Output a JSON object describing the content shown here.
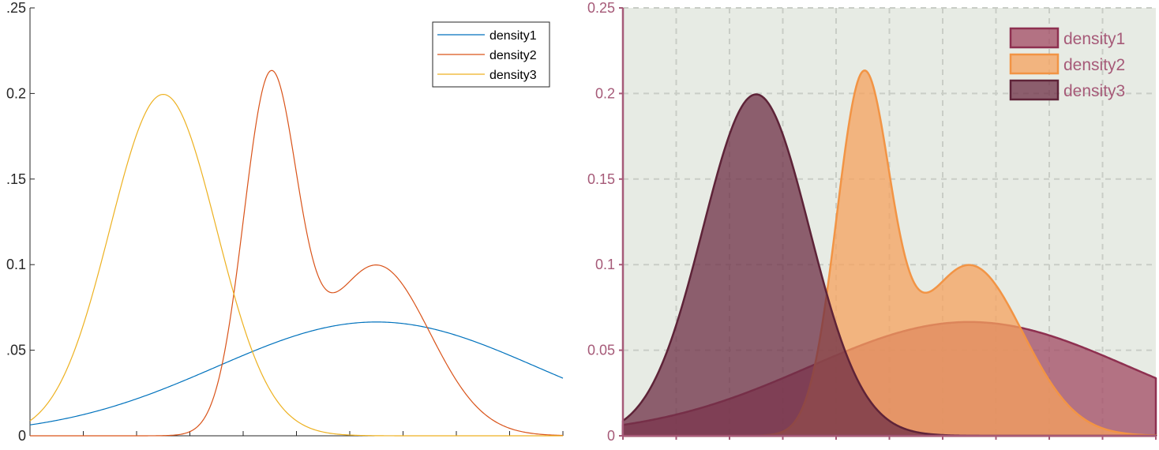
{
  "chart_data": [
    {
      "type": "line",
      "title": "",
      "xlabel": "",
      "ylabel": "",
      "xlim": [
        -2,
        18
      ],
      "ylim": [
        0,
        0.25
      ],
      "yticks": [
        0,
        0.05,
        0.1,
        0.15,
        0.2,
        0.25
      ],
      "ytick_labels": [
        "0",
        ".05",
        "0.1",
        ".15",
        "0.2",
        ".25"
      ],
      "xticks": [
        -2,
        0,
        2,
        4,
        6,
        8,
        10,
        12,
        14,
        16,
        18
      ],
      "grid": false,
      "legend_position": "top-right",
      "legend": [
        "density1",
        "density2",
        "density3"
      ],
      "series": [
        {
          "name": "density1",
          "color": "#0072BD",
          "components": [
            {
              "weight": 1.0,
              "mu": 11,
              "sigma": 6
            }
          ]
        },
        {
          "name": "density2",
          "color": "#D95319",
          "components": [
            {
              "weight": 0.5,
              "mu": 7,
              "sigma": 1
            },
            {
              "weight": 0.5,
              "mu": 11,
              "sigma": 2
            }
          ]
        },
        {
          "name": "density3",
          "color": "#EDB120",
          "components": [
            {
              "weight": 1.0,
              "mu": 3,
              "sigma": 2
            }
          ]
        }
      ]
    },
    {
      "type": "area",
      "title": "",
      "xlabel": "",
      "ylabel": "",
      "xlim": [
        -2,
        18
      ],
      "ylim": [
        0,
        0.25
      ],
      "yticks": [
        0,
        0.05,
        0.1,
        0.15,
        0.2,
        0.25
      ],
      "ytick_labels": [
        "0",
        "0.05",
        "0.1",
        "0.15",
        "0.2",
        "0.25"
      ],
      "xticks": [
        -2,
        0,
        2,
        4,
        6,
        8,
        10,
        12,
        14,
        16,
        18
      ],
      "grid": true,
      "background": "#E7EBE4",
      "axis_color": "#A65A78",
      "legend_position": "top-right",
      "legend": [
        "density1",
        "density2",
        "density3"
      ],
      "series": [
        {
          "name": "density1",
          "fill": "#A24A63",
          "edge": "#8E3050",
          "components": [
            {
              "weight": 1.0,
              "mu": 11,
              "sigma": 6
            }
          ]
        },
        {
          "name": "density2",
          "fill": "#F6A25E",
          "edge": "#F29445",
          "components": [
            {
              "weight": 0.5,
              "mu": 7,
              "sigma": 1
            },
            {
              "weight": 0.5,
              "mu": 11,
              "sigma": 2
            }
          ]
        },
        {
          "name": "density3",
          "fill": "#6E2F46",
          "edge": "#5E2338",
          "components": [
            {
              "weight": 1.0,
              "mu": 3,
              "sigma": 2
            }
          ]
        }
      ]
    }
  ]
}
